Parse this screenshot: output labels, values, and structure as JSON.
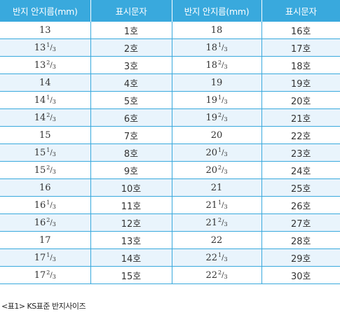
{
  "colors": {
    "header_bg": "#39a9dd",
    "header_text": "#ffffff",
    "row_alt_bg": "#e9f4fc",
    "grid_line": "#39a9dd"
  },
  "table": {
    "headers": [
      "반지 안지름(mm)",
      "표시문자",
      "반지 안지름(mm)",
      "표시문자"
    ],
    "rows": [
      {
        "d1": "13",
        "f1": "",
        "c1": "1호",
        "d2": "18",
        "f2": "",
        "c2": "16호"
      },
      {
        "d1": "13",
        "f1": "1/3",
        "c1": "2호",
        "d2": "18",
        "f2": "1/3",
        "c2": "17호"
      },
      {
        "d1": "13",
        "f1": "2/3",
        "c1": "3호",
        "d2": "18",
        "f2": "2/3",
        "c2": "18호"
      },
      {
        "d1": "14",
        "f1": "",
        "c1": "4호",
        "d2": "19",
        "f2": "",
        "c2": "19호"
      },
      {
        "d1": "14",
        "f1": "1/3",
        "c1": "5호",
        "d2": "19",
        "f2": "1/3",
        "c2": "20호"
      },
      {
        "d1": "14",
        "f1": "2/3",
        "c1": "6호",
        "d2": "19",
        "f2": "2/3",
        "c2": "21호"
      },
      {
        "d1": "15",
        "f1": "",
        "c1": "7호",
        "d2": "20",
        "f2": "",
        "c2": "22호"
      },
      {
        "d1": "15",
        "f1": "1/3",
        "c1": "8호",
        "d2": "20",
        "f2": "1/3",
        "c2": "23호"
      },
      {
        "d1": "15",
        "f1": "2/3",
        "c1": "9호",
        "d2": "20",
        "f2": "2/3",
        "c2": "24호"
      },
      {
        "d1": "16",
        "f1": "",
        "c1": "10호",
        "d2": "21",
        "f2": "",
        "c2": "25호"
      },
      {
        "d1": "16",
        "f1": "1/3",
        "c1": "11호",
        "d2": "21",
        "f2": "1/3",
        "c2": "26호"
      },
      {
        "d1": "16",
        "f1": "2/3",
        "c1": "12호",
        "d2": "21",
        "f2": "2/3",
        "c2": "27호"
      },
      {
        "d1": "17",
        "f1": "",
        "c1": "13호",
        "d2": "22",
        "f2": "",
        "c2": "28호"
      },
      {
        "d1": "17",
        "f1": "1/3",
        "c1": "14호",
        "d2": "22",
        "f2": "1/3",
        "c2": "29호"
      },
      {
        "d1": "17",
        "f1": "2/3",
        "c1": "15호",
        "d2": "22",
        "f2": "2/3",
        "c2": "30호"
      }
    ]
  },
  "caption": "<표1> KS표준 반지사이즈"
}
